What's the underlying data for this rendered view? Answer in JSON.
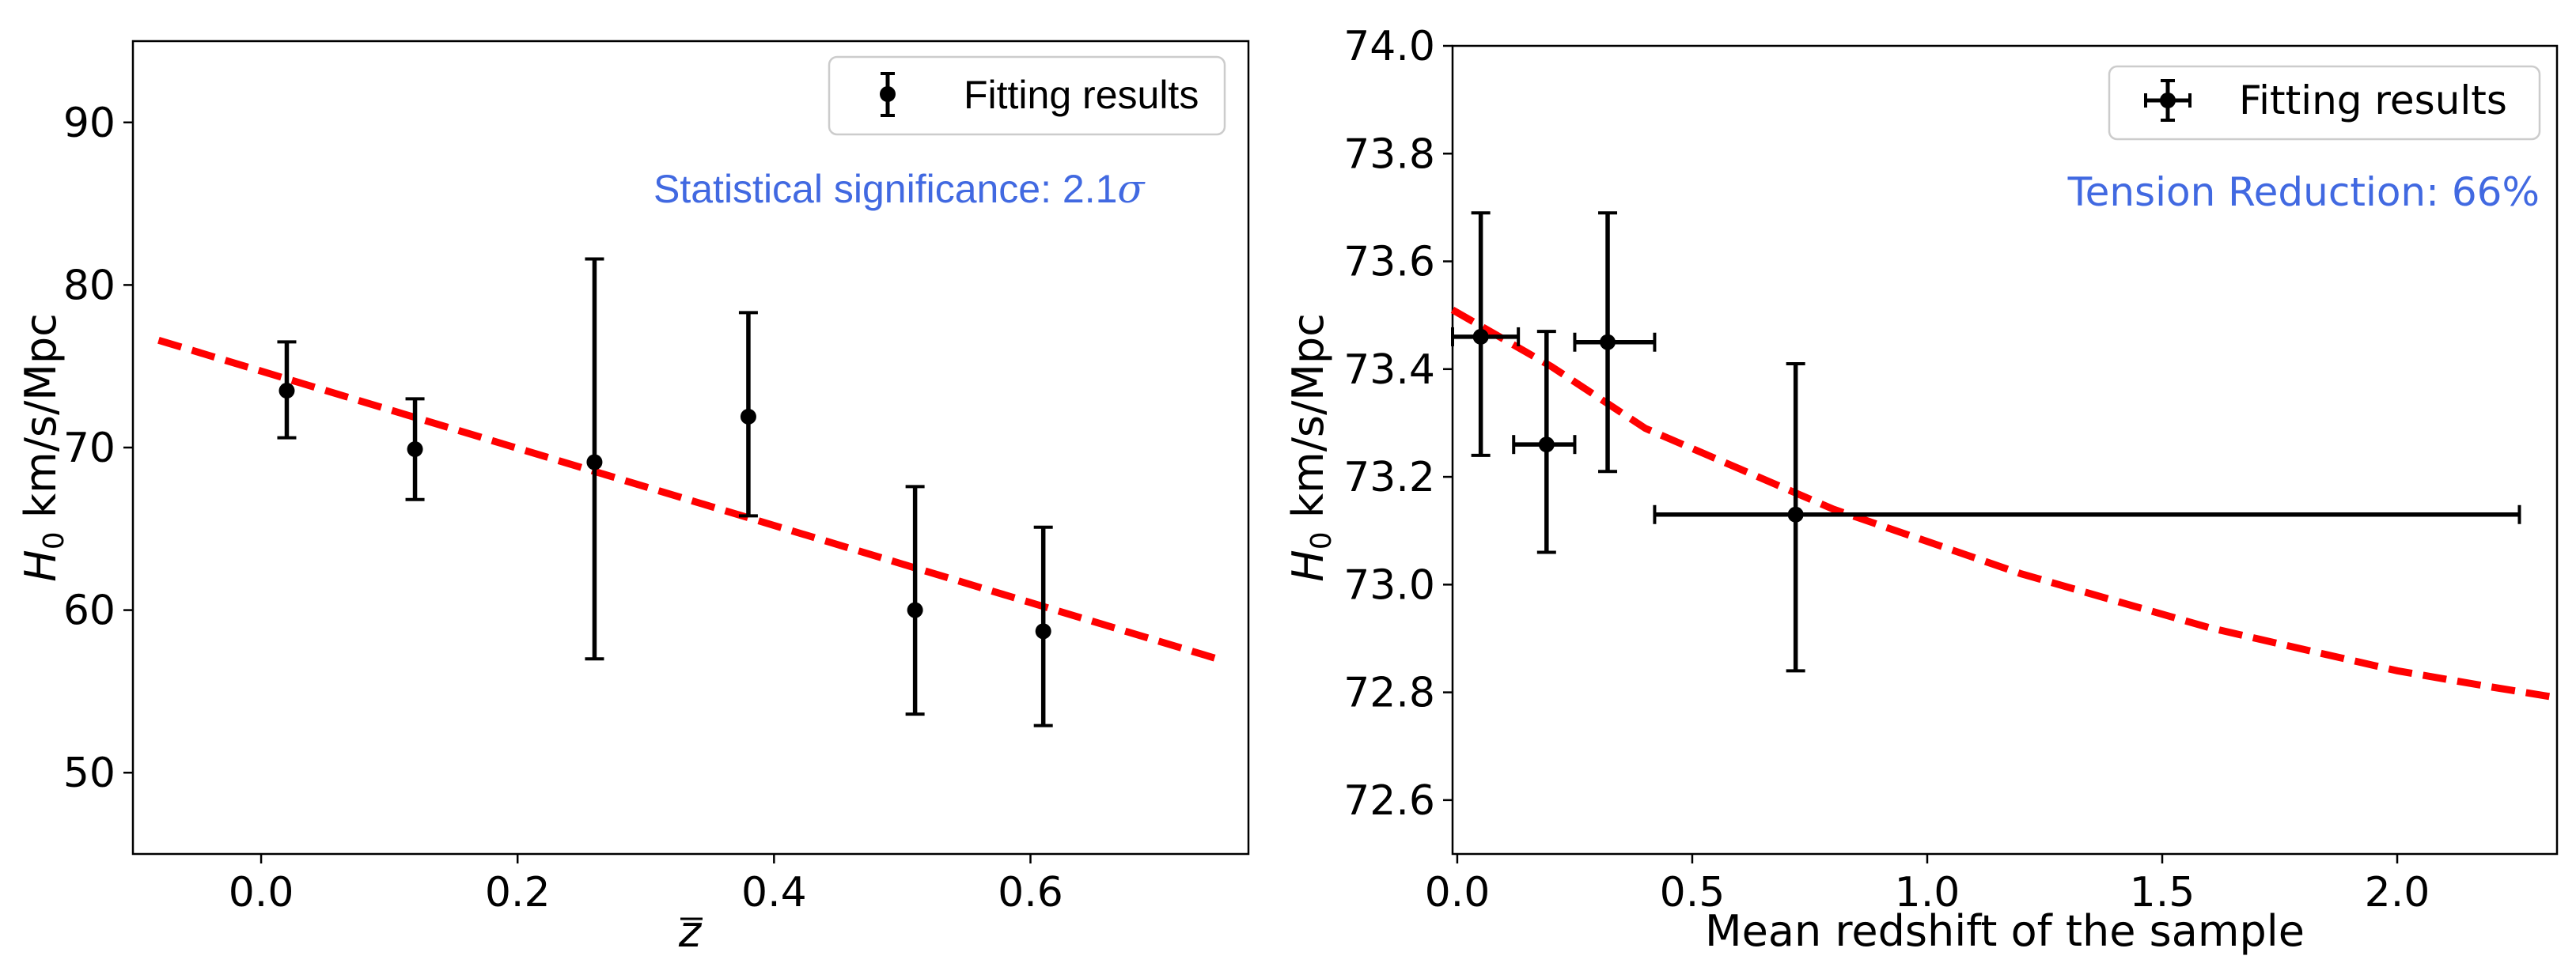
{
  "chart_data": [
    {
      "type": "scatter",
      "subtype": "errorbar",
      "xlabel_symbol": "z",
      "ylabel_symbol": "H",
      "ylabel_subscript": "0",
      "ylabel_unit": " km/s/Mpc",
      "xlim": [
        -0.1,
        0.77
      ],
      "ylim": [
        45,
        95
      ],
      "x_ticks": [
        0.0,
        0.2,
        0.4,
        0.6
      ],
      "x_tick_labels": [
        "0.0",
        "0.2",
        "0.4",
        "0.6"
      ],
      "y_ticks": [
        50,
        60,
        70,
        80,
        90
      ],
      "y_tick_labels": [
        "50",
        "60",
        "70",
        "80",
        "90"
      ],
      "legend": {
        "label": "Fitting results",
        "placement": "top-right"
      },
      "annotation": {
        "prefix": "Statistical significance: 2.1",
        "symbol": "σ",
        "color": "#4169e1"
      },
      "points": [
        {
          "x": 0.02,
          "y": 73.5,
          "yerr_low": 70.6,
          "yerr_high": 76.5
        },
        {
          "x": 0.12,
          "y": 69.9,
          "yerr_low": 66.8,
          "yerr_high": 73.0
        },
        {
          "x": 0.26,
          "y": 69.1,
          "yerr_low": 57.0,
          "yerr_high": 81.6
        },
        {
          "x": 0.38,
          "y": 71.9,
          "yerr_low": 65.8,
          "yerr_high": 78.3
        },
        {
          "x": 0.51,
          "y": 60.0,
          "yerr_low": 53.6,
          "yerr_high": 67.6
        },
        {
          "x": 0.61,
          "y": 58.7,
          "yerr_low": 52.9,
          "yerr_high": 65.1
        }
      ],
      "fit_line": {
        "color": "#ff0000",
        "style": "dashed",
        "x": [
          -0.08,
          0.75
        ],
        "y": [
          76.6,
          56.9
        ]
      }
    },
    {
      "type": "scatter",
      "subtype": "errorbar",
      "xlabel": "Mean redshift of the sample",
      "ylabel_symbol": "H",
      "ylabel_subscript": "0",
      "ylabel_unit": " km/s/Mpc",
      "xlim": [
        -0.01,
        2.34
      ],
      "ylim": [
        72.5,
        74.0
      ],
      "x_ticks": [
        0.0,
        0.5,
        1.0,
        1.5,
        2.0
      ],
      "x_tick_labels": [
        "0.0",
        "0.5",
        "1.0",
        "1.5",
        "2.0"
      ],
      "y_ticks": [
        72.6,
        72.8,
        73.0,
        73.2,
        73.4,
        73.6,
        73.8,
        74.0
      ],
      "y_tick_labels": [
        "72.6",
        "72.8",
        "73.0",
        "73.2",
        "73.4",
        "73.6",
        "73.8",
        "74.0"
      ],
      "legend": {
        "label": "Fitting results",
        "placement": "top-right"
      },
      "annotation": {
        "text": "Tension Reduction: 66%",
        "color": "#4169e1"
      },
      "points": [
        {
          "x": 0.05,
          "y": 73.46,
          "xerr_low": -0.01,
          "xerr_high": 0.13,
          "yerr_low": 73.24,
          "yerr_high": 73.69
        },
        {
          "x": 0.19,
          "y": 73.26,
          "xerr_low": 0.12,
          "xerr_high": 0.25,
          "yerr_low": 73.06,
          "yerr_high": 73.47
        },
        {
          "x": 0.32,
          "y": 73.45,
          "xerr_low": 0.25,
          "xerr_high": 0.42,
          "yerr_low": 73.21,
          "yerr_high": 73.69
        },
        {
          "x": 0.72,
          "y": 73.13,
          "xerr_low": 0.42,
          "xerr_high": 2.26,
          "yerr_low": 72.84,
          "yerr_high": 73.41
        }
      ],
      "fit_curve": {
        "color": "#ff0000",
        "style": "dashed",
        "x": [
          -0.01,
          0.2,
          0.4,
          0.6,
          0.8,
          1.0,
          1.2,
          1.4,
          1.6,
          1.8,
          2.0,
          2.2,
          2.34
        ],
        "y": [
          73.51,
          73.405,
          73.29,
          73.215,
          73.14,
          73.08,
          73.02,
          72.97,
          72.92,
          72.88,
          72.84,
          72.81,
          72.79
        ]
      }
    }
  ]
}
